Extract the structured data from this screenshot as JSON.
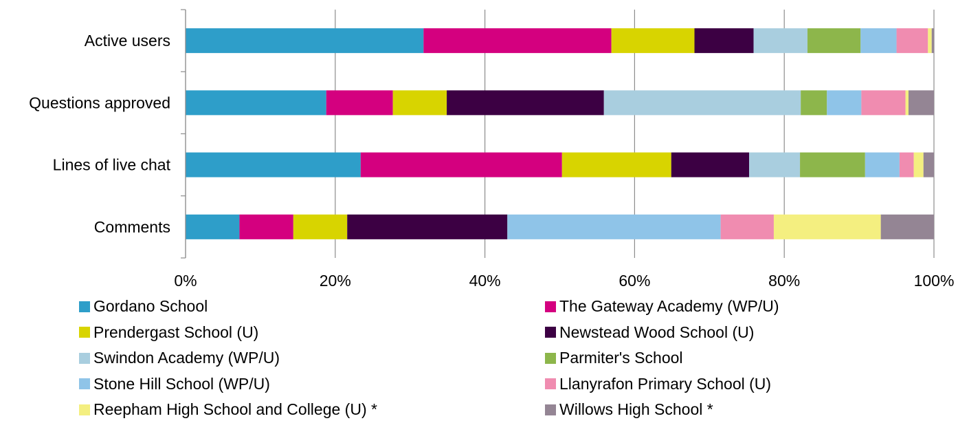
{
  "chart_data": {
    "type": "bar",
    "orientation": "horizontal",
    "stacked": "percent",
    "categories": [
      "Active users",
      "Questions approved",
      "Lines of live chat",
      "Comments"
    ],
    "x_ticks": [
      "0%",
      "20%",
      "40%",
      "60%",
      "80%",
      "100%"
    ],
    "xlim": [
      0,
      100
    ],
    "grid": "vertical",
    "legend_position": "bottom",
    "series": [
      {
        "name": "Gordano School",
        "color": "#2e9ec9",
        "values": [
          31.8,
          18.8,
          23.4,
          7.2
        ]
      },
      {
        "name": "The Gateway Academy (WP/U)",
        "color": "#d4007f",
        "values": [
          25.1,
          8.9,
          26.9,
          7.2
        ]
      },
      {
        "name": "Prendergast School (U)",
        "color": "#d8d400",
        "values": [
          11.1,
          7.2,
          14.6,
          7.2
        ]
      },
      {
        "name": "Newstead Wood School (U)",
        "color": "#3c0043",
        "values": [
          7.9,
          21.0,
          10.4,
          21.4
        ]
      },
      {
        "name": "Swindon Academy (WP/U)",
        "color": "#a9cedf",
        "values": [
          7.2,
          26.3,
          6.8,
          0.0
        ]
      },
      {
        "name": "Parmiter's School",
        "color": "#8db64b",
        "values": [
          7.1,
          3.5,
          8.7,
          0.0
        ]
      },
      {
        "name": "Stone Hill School (WP/U)",
        "color": "#8fc4e8",
        "values": [
          4.8,
          4.6,
          4.6,
          28.5
        ]
      },
      {
        "name": "Llanyrafon Primary School (U)",
        "color": "#f08cb0",
        "values": [
          4.2,
          5.9,
          1.9,
          7.1
        ]
      },
      {
        "name": "Reepham High School and College (U) *",
        "color": "#f4ef80",
        "values": [
          0.5,
          0.4,
          1.3,
          14.3
        ]
      },
      {
        "name": "Willows High School *",
        "color": "#948594",
        "values": [
          0.3,
          3.4,
          1.4,
          7.1
        ]
      }
    ]
  }
}
